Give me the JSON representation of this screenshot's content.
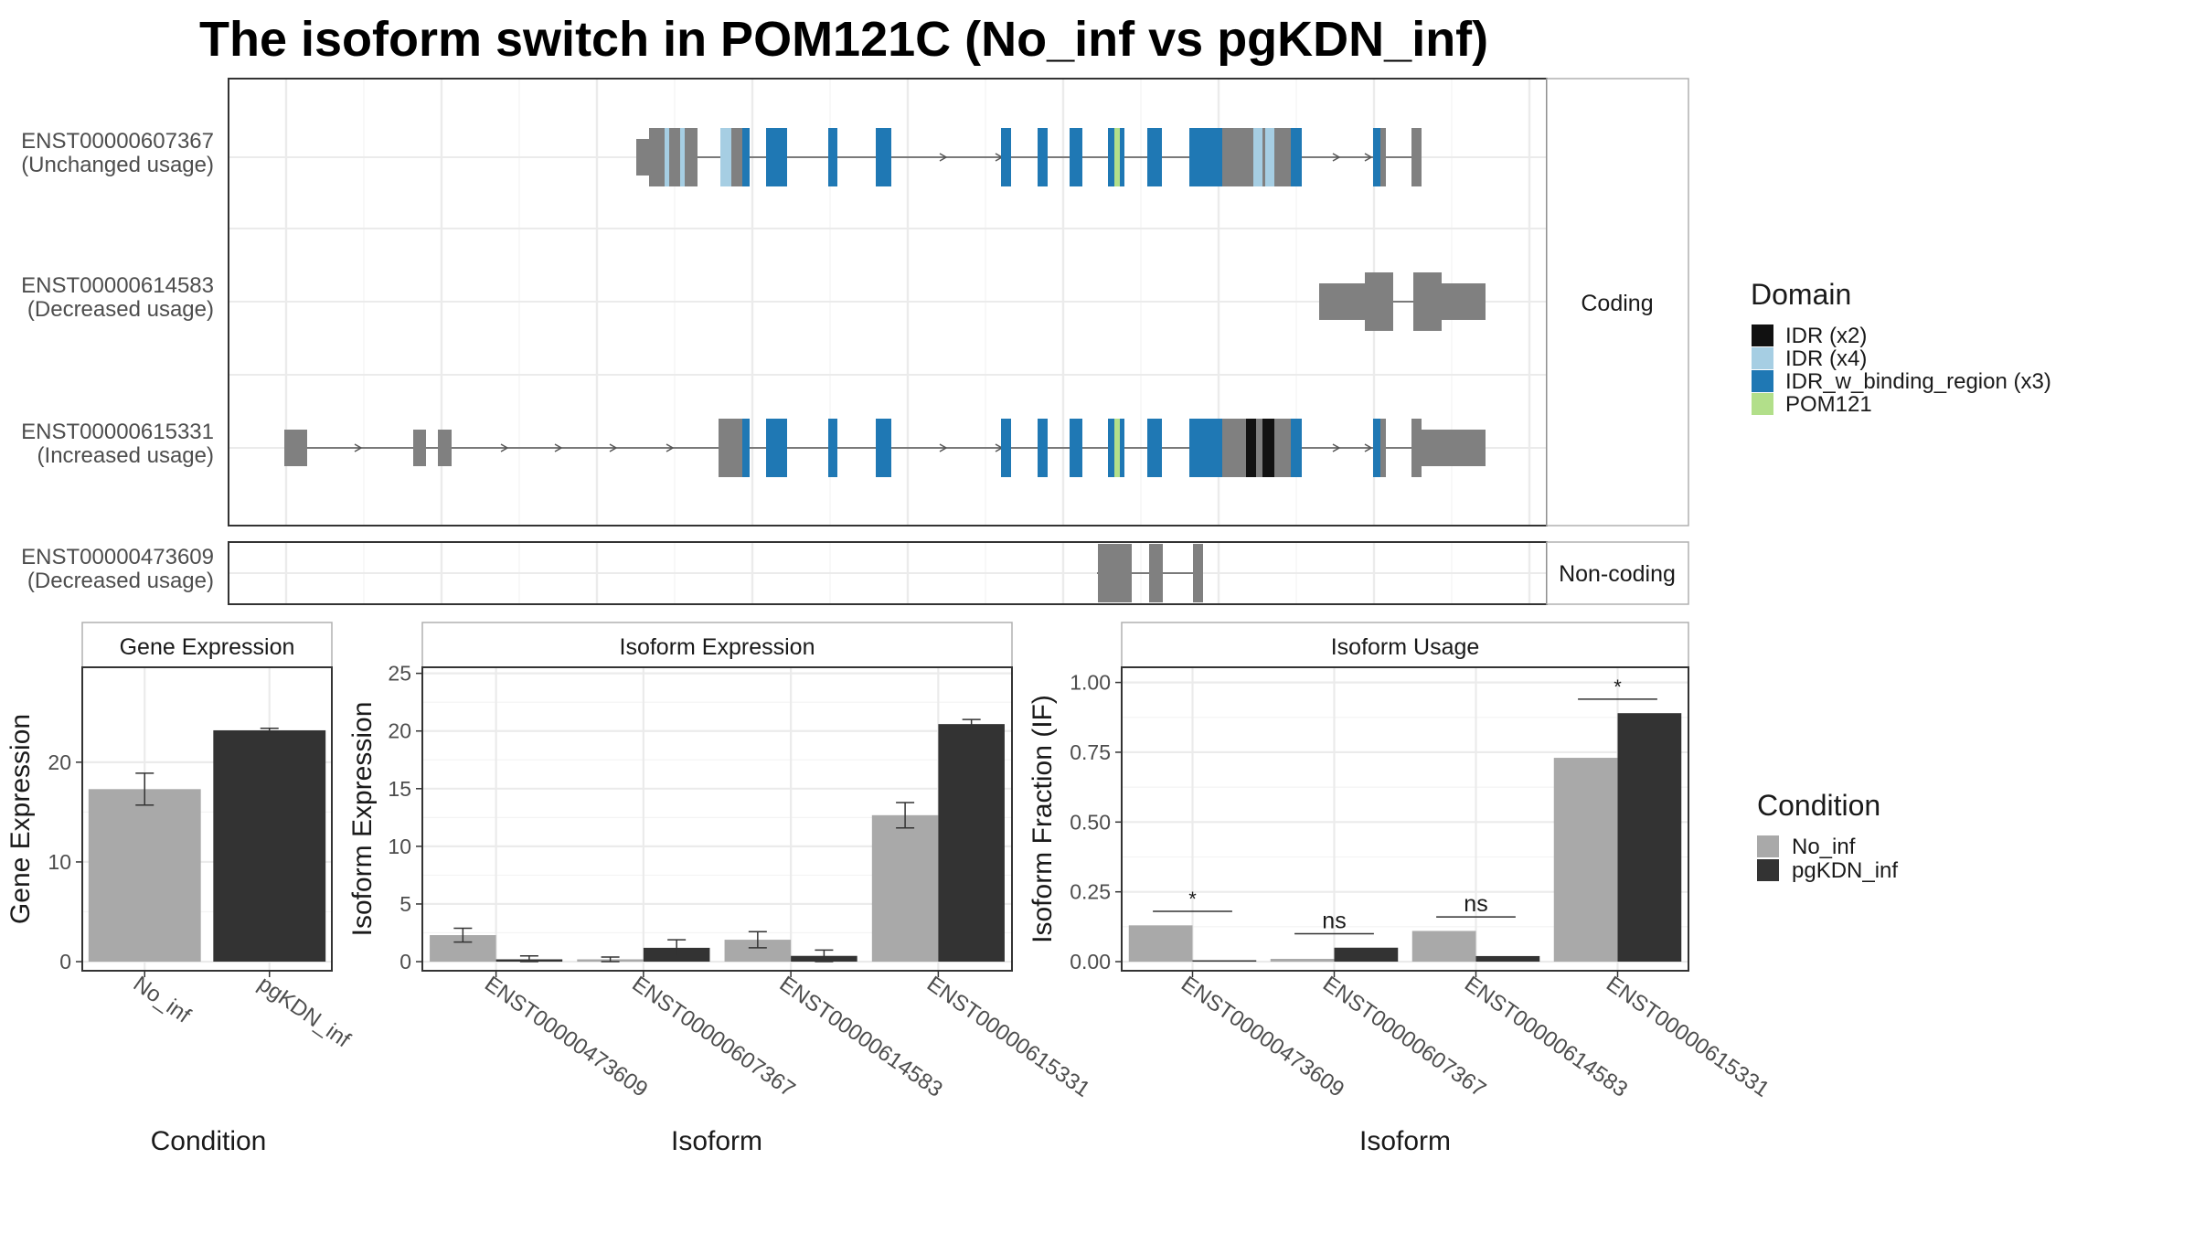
{
  "title": "The isoform switch in POM121C (No_inf vs pgKDN_inf)",
  "colors": {
    "exon": "#808080",
    "no_inf": "#A9A9A9",
    "pgkdn_inf": "#333333",
    "domain_idr_x2": "#111111",
    "domain_idr_x4": "#A6CEE3",
    "domain_idr_binding": "#1F78B4",
    "domain_pom121": "#B2DF8A"
  },
  "domain_legend": {
    "title": "Domain",
    "entries": [
      {
        "label": "IDR (x2)",
        "color": "#111111"
      },
      {
        "label": "IDR (x4)",
        "color": "#A6CEE3"
      },
      {
        "label": "IDR_w_binding_region (x3)",
        "color": "#1F78B4"
      },
      {
        "label": "POM121",
        "color": "#B2DF8A"
      }
    ]
  },
  "condition_legend": {
    "title": "Condition",
    "entries": [
      {
        "label": "No_inf",
        "color": "#A9A9A9"
      },
      {
        "label": "pgKDN_inf",
        "color": "#333333"
      }
    ]
  },
  "structure": {
    "strips": [
      "Coding",
      "Non-coding"
    ],
    "isoforms": [
      {
        "id": "ENST00000607367",
        "usage": "(Unchanged usage)",
        "group": "Coding"
      },
      {
        "id": "ENST00000614583",
        "usage": "(Decreased usage)",
        "group": "Coding"
      },
      {
        "id": "ENST00000615331",
        "usage": "(Increased usage)",
        "group": "Coding"
      },
      {
        "id": "ENST00000473609",
        "usage": "(Decreased usage)",
        "group": "Non-coding"
      }
    ]
  },
  "chart_data": [
    {
      "type": "bar",
      "title": "Gene Expression",
      "xlabel": "Condition",
      "ylabel": "Gene Expression",
      "categories": [
        "No_inf",
        "pgKDN_inf"
      ],
      "values": [
        17.3,
        23.2
      ],
      "errors": [
        1.6,
        0.2
      ],
      "ylim": [
        0,
        28
      ],
      "yticks": [
        0,
        10,
        20
      ],
      "grid": true
    },
    {
      "type": "bar",
      "title": "Isoform Expression",
      "xlabel": "Isoform",
      "ylabel": "Isoform Expression",
      "categories": [
        "ENST00000473609",
        "ENST00000607367",
        "ENST00000614583",
        "ENST00000615331"
      ],
      "series": [
        {
          "name": "No_inf",
          "values": [
            2.3,
            0.2,
            1.9,
            12.7
          ],
          "errors": [
            0.6,
            0.2,
            0.7,
            1.1
          ]
        },
        {
          "name": "pgKDN_inf",
          "values": [
            0.2,
            1.2,
            0.5,
            20.6
          ],
          "errors": [
            0.3,
            0.7,
            0.5,
            0.4
          ]
        }
      ],
      "ylim": [
        0,
        25
      ],
      "yticks": [
        0,
        5,
        10,
        15,
        20,
        25
      ],
      "grid": true
    },
    {
      "type": "bar",
      "title": "Isoform Usage",
      "xlabel": "Isoform",
      "ylabel": "Isoform Fraction (IF)",
      "categories": [
        "ENST00000473609",
        "ENST00000607367",
        "ENST00000614583",
        "ENST00000615331"
      ],
      "series": [
        {
          "name": "No_inf",
          "values": [
            0.13,
            0.01,
            0.11,
            0.73
          ]
        },
        {
          "name": "pgKDN_inf",
          "values": [
            0.005,
            0.05,
            0.02,
            0.89
          ]
        }
      ],
      "significance": [
        "*",
        "ns",
        "ns",
        "*"
      ],
      "ylim": [
        0,
        1.0
      ],
      "yticks": [
        "0.00",
        "0.25",
        "0.50",
        "0.75",
        "1.00"
      ],
      "grid": true
    }
  ]
}
